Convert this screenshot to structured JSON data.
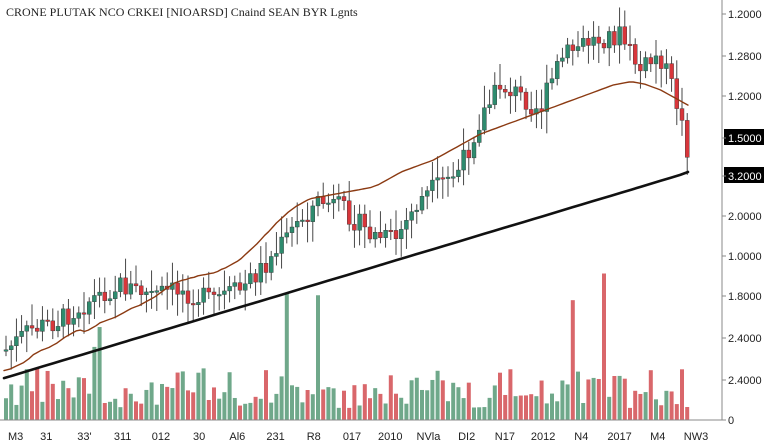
{
  "chart_data": {
    "type": "candlestick",
    "title": "CRONE PLUTAK NCO CRKEI  [NIOARSD] Cnaind SEAN BYR Lgnts",
    "x_tick_labels": [
      "M3",
      "31",
      "33'",
      "311",
      "012",
      "30",
      "Al6",
      "231",
      "R8",
      "017",
      "2010",
      "NVla",
      "DI2",
      "N17",
      "2012",
      "N4",
      "2017",
      "M4",
      "NW3"
    ],
    "price_tick_labels": [
      "1.2000",
      "1.2800",
      "1.2000",
      "1.5000",
      "3.2000",
      "2.0000",
      "1.0000",
      "1.8000",
      "2.4000",
      "2.4000",
      "0"
    ],
    "highlighted_price_labels": [
      "1.5000",
      "3.2000"
    ],
    "price_range": [
      0,
      100
    ],
    "volume_range": [
      0,
      100
    ],
    "colors": {
      "up": "#2e8b6e",
      "down": "#d8363b",
      "volume_up": "#6fa88a",
      "volume_down": "#d9676b",
      "ma_fast": "#8b3a12",
      "ma_slow": "#111111",
      "badge_bg": "#000000",
      "background": "#ffffff"
    },
    "moving_averages": [
      {
        "color_key": "ma_fast",
        "width": 1.4,
        "values": [
          [
            0,
            2
          ],
          [
            6,
            4
          ],
          [
            12,
            8
          ],
          [
            20,
            13
          ],
          [
            26,
            19
          ],
          [
            30,
            24
          ],
          [
            34,
            27
          ],
          [
            38,
            30
          ],
          [
            42,
            32
          ],
          [
            46,
            34
          ],
          [
            50,
            37
          ],
          [
            54,
            40
          ],
          [
            58,
            44
          ],
          [
            62,
            48
          ],
          [
            66,
            51
          ],
          [
            70,
            54
          ],
          [
            74,
            57
          ],
          [
            78,
            58
          ],
          [
            82,
            56
          ],
          [
            86,
            58
          ],
          [
            90,
            61
          ],
          [
            94,
            64
          ],
          [
            98,
            68
          ],
          [
            102,
            70
          ],
          [
            106,
            72
          ],
          [
            110,
            74
          ],
          [
            114,
            76
          ],
          [
            118,
            79
          ],
          [
            122,
            82
          ],
          [
            126,
            85
          ],
          [
            130,
            88
          ],
          [
            134,
            90
          ],
          [
            138,
            92
          ],
          [
            142,
            95
          ],
          [
            146,
            98
          ],
          [
            150,
            101
          ],
          [
            154,
            104
          ],
          [
            158,
            108
          ],
          [
            162,
            112
          ],
          [
            166,
            116
          ],
          [
            170,
            119
          ],
          [
            174,
            123
          ],
          [
            178,
            125
          ],
          [
            182,
            127
          ],
          [
            186,
            128
          ],
          [
            190,
            130
          ],
          [
            194,
            131
          ],
          [
            198,
            133
          ],
          [
            202,
            134
          ],
          [
            206,
            135
          ],
          [
            210,
            136
          ],
          [
            214,
            137
          ],
          [
            218,
            139
          ],
          [
            222,
            142
          ],
          [
            226,
            144
          ],
          [
            230,
            147
          ],
          [
            234,
            150
          ],
          [
            238,
            153
          ],
          [
            242,
            157
          ],
          [
            246,
            162
          ],
          [
            250,
            167
          ],
          [
            254,
            172
          ],
          [
            258,
            177
          ],
          [
            262,
            183
          ],
          [
            266,
            189
          ],
          [
            270,
            194
          ],
          [
            274,
            200
          ],
          [
            278,
            206
          ],
          [
            282,
            211
          ],
          [
            286,
            216
          ],
          [
            290,
            221
          ],
          [
            294,
            225
          ],
          [
            298,
            229
          ],
          [
            302,
            232
          ],
          [
            306,
            235
          ],
          [
            310,
            238
          ],
          [
            314,
            240
          ],
          [
            318,
            241
          ],
          [
            322,
            242
          ],
          [
            326,
            243
          ],
          [
            330,
            244
          ],
          [
            334,
            245
          ],
          [
            338,
            246
          ],
          [
            342,
            247
          ],
          [
            346,
            248
          ],
          [
            350,
            249
          ],
          [
            354,
            250
          ],
          [
            358,
            251
          ],
          [
            362,
            252
          ],
          [
            366,
            253
          ],
          [
            370,
            254
          ],
          [
            374,
            255
          ],
          [
            378,
            257
          ],
          [
            382,
            259
          ],
          [
            386,
            262
          ],
          [
            390,
            265
          ],
          [
            394,
            268
          ],
          [
            398,
            271
          ],
          [
            402,
            274
          ],
          [
            406,
            277
          ],
          [
            410,
            279
          ],
          [
            414,
            281
          ],
          [
            418,
            283
          ],
          [
            422,
            285
          ],
          [
            426,
            287
          ],
          [
            430,
            289
          ],
          [
            434,
            291
          ],
          [
            438,
            293
          ],
          [
            442,
            296
          ],
          [
            446,
            299
          ],
          [
            450,
            302
          ],
          [
            454,
            305
          ],
          [
            458,
            308
          ],
          [
            462,
            311
          ],
          [
            466,
            314
          ],
          [
            470,
            317
          ],
          [
            474,
            320
          ],
          [
            478,
            323
          ],
          [
            482,
            326
          ],
          [
            486,
            329
          ],
          [
            490,
            331
          ],
          [
            494,
            333
          ],
          [
            498,
            335
          ],
          [
            502,
            337
          ],
          [
            506,
            339
          ],
          [
            510,
            341
          ],
          [
            514,
            343
          ],
          [
            518,
            345
          ],
          [
            522,
            347
          ],
          [
            526,
            349
          ],
          [
            530,
            351
          ],
          [
            534,
            353
          ],
          [
            538,
            355
          ],
          [
            542,
            357
          ],
          [
            546,
            359
          ],
          [
            550,
            361
          ],
          [
            554,
            363
          ],
          [
            558,
            365
          ],
          [
            562,
            367
          ],
          [
            566,
            369
          ],
          [
            570,
            371
          ],
          [
            574,
            373
          ],
          [
            578,
            375
          ],
          [
            582,
            377
          ],
          [
            586,
            379
          ],
          [
            590,
            381
          ],
          [
            594,
            383
          ],
          [
            598,
            385
          ],
          [
            602,
            387
          ],
          [
            606,
            389
          ],
          [
            610,
            391
          ],
          [
            614,
            393
          ],
          [
            618,
            395
          ],
          [
            622,
            397
          ],
          [
            626,
            398
          ],
          [
            630,
            399
          ],
          [
            634,
            400
          ],
          [
            638,
            401
          ],
          [
            642,
            401
          ],
          [
            646,
            400
          ],
          [
            650,
            399
          ],
          [
            654,
            398
          ],
          [
            658,
            396
          ],
          [
            662,
            394
          ],
          [
            666,
            392
          ],
          [
            670,
            390
          ],
          [
            674,
            387
          ],
          [
            678,
            384
          ],
          [
            682,
            381
          ],
          [
            686,
            378
          ],
          [
            690,
            375
          ],
          [
            694,
            372
          ],
          [
            698,
            369
          ]
        ]
      },
      {
        "color_key": "ma_slow",
        "width": 2.6,
        "values": [
          [
            0,
            2
          ],
          [
            10,
            3
          ],
          [
            20,
            4
          ],
          [
            30,
            5
          ],
          [
            40,
            6
          ],
          [
            50,
            7
          ],
          [
            60,
            8
          ],
          [
            70,
            9
          ],
          [
            80,
            10
          ],
          [
            90,
            11
          ],
          [
            100,
            12
          ],
          [
            110,
            13
          ],
          [
            120,
            14
          ],
          [
            130,
            15
          ],
          [
            140,
            16
          ],
          [
            150,
            17
          ],
          [
            160,
            18
          ],
          [
            170,
            19
          ],
          [
            180,
            20
          ],
          [
            190,
            21
          ],
          [
            200,
            22
          ],
          [
            210,
            23
          ],
          [
            220,
            24
          ],
          [
            230,
            25
          ],
          [
            240,
            26
          ],
          [
            250,
            27
          ],
          [
            260,
            28
          ],
          [
            270,
            29
          ],
          [
            280,
            30
          ],
          [
            290,
            31
          ],
          [
            300,
            32
          ],
          [
            310,
            33
          ],
          [
            320,
            34
          ],
          [
            330,
            35
          ],
          [
            340,
            36
          ],
          [
            350,
            37
          ],
          [
            360,
            38
          ],
          [
            370,
            39
          ],
          [
            380,
            40
          ],
          [
            390,
            41
          ],
          [
            400,
            42
          ],
          [
            410,
            43
          ],
          [
            420,
            44
          ],
          [
            430,
            45
          ],
          [
            440,
            46
          ],
          [
            450,
            47
          ],
          [
            460,
            48
          ],
          [
            470,
            49
          ],
          [
            480,
            50
          ],
          [
            490,
            51
          ],
          [
            500,
            52
          ],
          [
            510,
            53
          ],
          [
            520,
            54
          ],
          [
            530,
            55
          ],
          [
            540,
            56
          ],
          [
            550,
            57
          ],
          [
            560,
            58
          ],
          [
            570,
            59
          ],
          [
            580,
            60
          ],
          [
            590,
            61
          ],
          [
            600,
            62
          ],
          [
            610,
            63
          ],
          [
            620,
            64
          ],
          [
            630,
            65
          ],
          [
            640,
            66
          ],
          [
            650,
            67
          ],
          [
            660,
            68
          ],
          [
            670,
            69
          ],
          [
            680,
            70
          ],
          [
            690,
            71
          ],
          [
            698,
            72
          ]
        ]
      }
    ]
  }
}
